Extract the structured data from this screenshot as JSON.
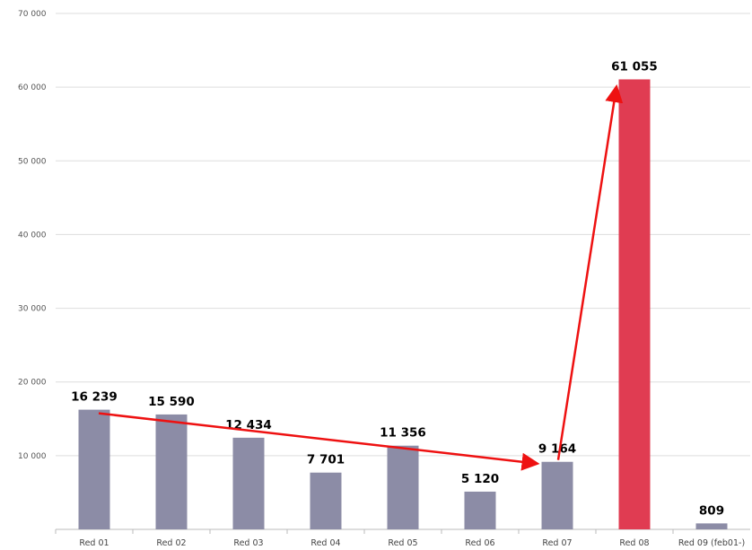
{
  "chart_data": {
    "type": "bar",
    "categories": [
      "Red 01",
      "Red 02",
      "Red 03",
      "Red 04",
      "Red 05",
      "Red 06",
      "Red 07",
      "Red 08",
      "Red 09 (feb01-)"
    ],
    "values": [
      16239,
      15590,
      12434,
      7701,
      11356,
      5120,
      9164,
      61055,
      809
    ],
    "value_labels": [
      "16 239",
      "15 590",
      "12 434",
      "7 701",
      "11 356",
      "5 120",
      "9 164",
      "61 055",
      "809"
    ],
    "ylim": [
      0,
      70000
    ],
    "yticks": [
      10000,
      20000,
      30000,
      40000,
      50000,
      60000,
      70000
    ],
    "ytick_labels": [
      "10 000",
      "20 000",
      "30 000",
      "40 000",
      "50 000",
      "60 000",
      "70 000"
    ],
    "grid": "horizontal",
    "colors": {
      "bar": "#8c8ca6",
      "highlight_bar": "#e03c52",
      "arrow": "#ee1111",
      "grid": "#dddddd"
    },
    "highlight_category": "Red 08",
    "annotations": [
      {
        "type": "arrow",
        "from_category": "Red 01",
        "from_value": 16239,
        "to_category": "Red 07",
        "to_value": 9164
      },
      {
        "type": "arrow",
        "from_category": "Red 07",
        "from_value": 9164,
        "to_category": "Red 08",
        "to_value": 61055
      }
    ]
  }
}
